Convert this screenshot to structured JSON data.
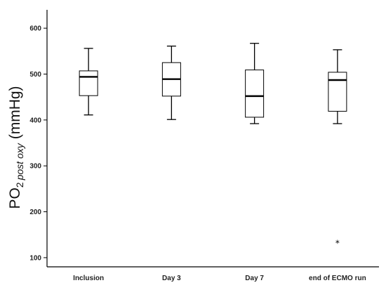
{
  "chart_data": {
    "type": "boxplot",
    "ylabel": {
      "main": "PO",
      "sub": "2",
      "subscript_italic": "post oxy",
      "unit": "(mmHg)"
    },
    "ylim": [
      80,
      640
    ],
    "yticks": [
      100,
      200,
      300,
      400,
      500,
      600
    ],
    "categories": [
      "Inclusion",
      "Day 3",
      "Day 7",
      "end of ECMO run"
    ],
    "boxes": [
      {
        "whisker_low": 411,
        "q1": 453,
        "median": 494,
        "q3": 507,
        "whisker_high": 556,
        "outliers": []
      },
      {
        "whisker_low": 401,
        "q1": 452,
        "median": 489,
        "q3": 525,
        "whisker_high": 561,
        "outliers": []
      },
      {
        "whisker_low": 392,
        "q1": 406,
        "median": 452,
        "q3": 509,
        "whisker_high": 567,
        "outliers": []
      },
      {
        "whisker_low": 392,
        "q1": 419,
        "median": 487,
        "q3": 504,
        "whisker_high": 553,
        "outliers": [
          133
        ]
      }
    ],
    "outlier_marker": "*",
    "grid": false,
    "legend": "none"
  }
}
